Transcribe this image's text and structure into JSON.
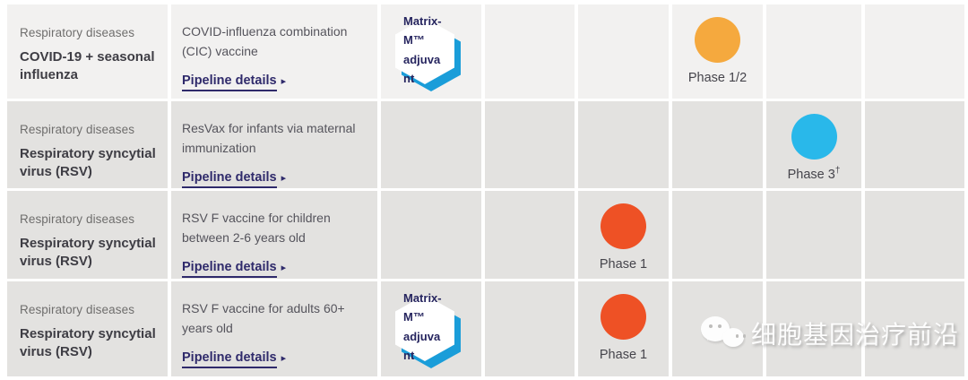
{
  "colors": {
    "row_light_bg": "#f2f1f0",
    "row_dark_bg": "#e3e2e0",
    "phase_1_color": "#ee5125",
    "phase_1_2_color": "#f5a93e",
    "phase_3_color": "#29b8ea",
    "badge_accent": "#1a9dd9",
    "link_color": "#2f2a6b"
  },
  "rows": [
    {
      "category_label": "Respiratory diseases",
      "category_title": "COVID-19 + seasonal influenza",
      "description": "COVID-influenza combination (CIC) vaccine",
      "link_label": "Pipeline details",
      "link_arrow": "▸",
      "badge_label": "Matrix-M™ adjuvant",
      "phase": {
        "label": "Phase 1/2",
        "sup": ""
      }
    },
    {
      "category_label": "Respiratory diseases",
      "category_title": "Respiratory syncytial virus (RSV)",
      "description": "ResVax for infants via maternal immunization",
      "link_label": "Pipeline details",
      "link_arrow": "▸",
      "phase": {
        "label": "Phase 3",
        "sup": "†"
      }
    },
    {
      "category_label": "Respiratory diseases",
      "category_title": "Respiratory syncytial virus (RSV)",
      "description": "RSV F vaccine for children between 2-6 years old",
      "link_label": "Pipeline details",
      "link_arrow": "▸",
      "phase": {
        "label": "Phase 1",
        "sup": ""
      }
    },
    {
      "category_label": "Respiratory diseases",
      "category_title": "Respiratory syncytial virus (RSV)",
      "description": "RSV F vaccine for adults 60+ years old",
      "link_label": "Pipeline details",
      "link_arrow": "▸",
      "badge_label": "Matrix-M™ adjuvant",
      "phase": {
        "label": "Phase 1",
        "sup": ""
      }
    }
  ],
  "watermark": {
    "text": "细胞基因治疗前沿"
  }
}
